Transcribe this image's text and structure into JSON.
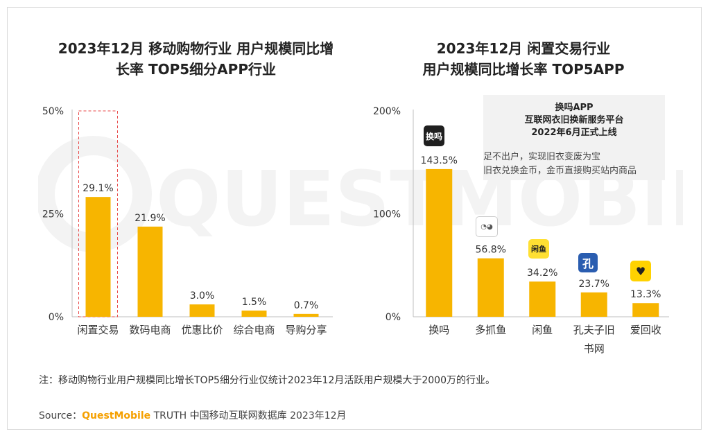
{
  "left_chart": {
    "title": "2023年12月 移动购物行业 用户规模同比增\n长率 TOP5细分APP行业"
  },
  "right_chart": {
    "title": "2023年12月 闲置交易行业\n用户规模同比增长率 TOP5APP",
    "callout_title": "换吗APP\n互联网衣旧换新服务平台\n2022年6月正式上线",
    "callout_body": "足不出户，实现旧衣变废为宝\n旧衣兑换金币，金币直接购买站内商品"
  },
  "watermark_text": "QUESTMOBILE",
  "note": "注：移动购物行业用户规模同比增长TOP5细分行业仅统计2023年12月活跃用户规模大于2000万的行业。",
  "source": {
    "prefix": "Source：",
    "brand": "QuestMobile",
    "suffix": " TRUTH 中国移动互联网数据库 2023年12月"
  },
  "colors": {
    "bar": "#f7b500",
    "bar_light": "#ffd23f",
    "highlight_border": "#e84a4a",
    "axis": "#bfbfbf"
  },
  "icons": [
    "huanma-app-icon",
    "duozhuayu-app-icon",
    "xianyu-app-icon",
    "kongfuzi-app-icon",
    "aihuishou-app-icon"
  ],
  "chart_data": [
    {
      "type": "bar",
      "categories": [
        "闲置交易",
        "数码电商",
        "优惠比价",
        "综合电商",
        "导购分享"
      ],
      "values": [
        29.1,
        21.9,
        3.0,
        1.5,
        0.7
      ],
      "labels": [
        "29.1%",
        "21.9%",
        "3.0%",
        "1.5%",
        "0.7%"
      ],
      "yticks": [
        "0%",
        "25%",
        "50%"
      ],
      "ylim": [
        0,
        50
      ],
      "highlight": "闲置交易",
      "title": "2023年12月 移动购物行业 用户规模同比增长率 TOP5细分APP行业"
    },
    {
      "type": "bar",
      "categories": [
        "换吗",
        "多抓鱼",
        "闲鱼",
        "孔夫子旧\n书网",
        "爱回收"
      ],
      "values": [
        143.5,
        56.8,
        34.2,
        23.7,
        13.3
      ],
      "labels": [
        "143.5%",
        "56.8%",
        "34.2%",
        "23.7%",
        "13.3%"
      ],
      "yticks": [
        "0%",
        "100%",
        "200%"
      ],
      "ylim": [
        0,
        200
      ],
      "title": "2023年12月 闲置交易行业 用户规模同比增长率 TOP5APP"
    }
  ]
}
